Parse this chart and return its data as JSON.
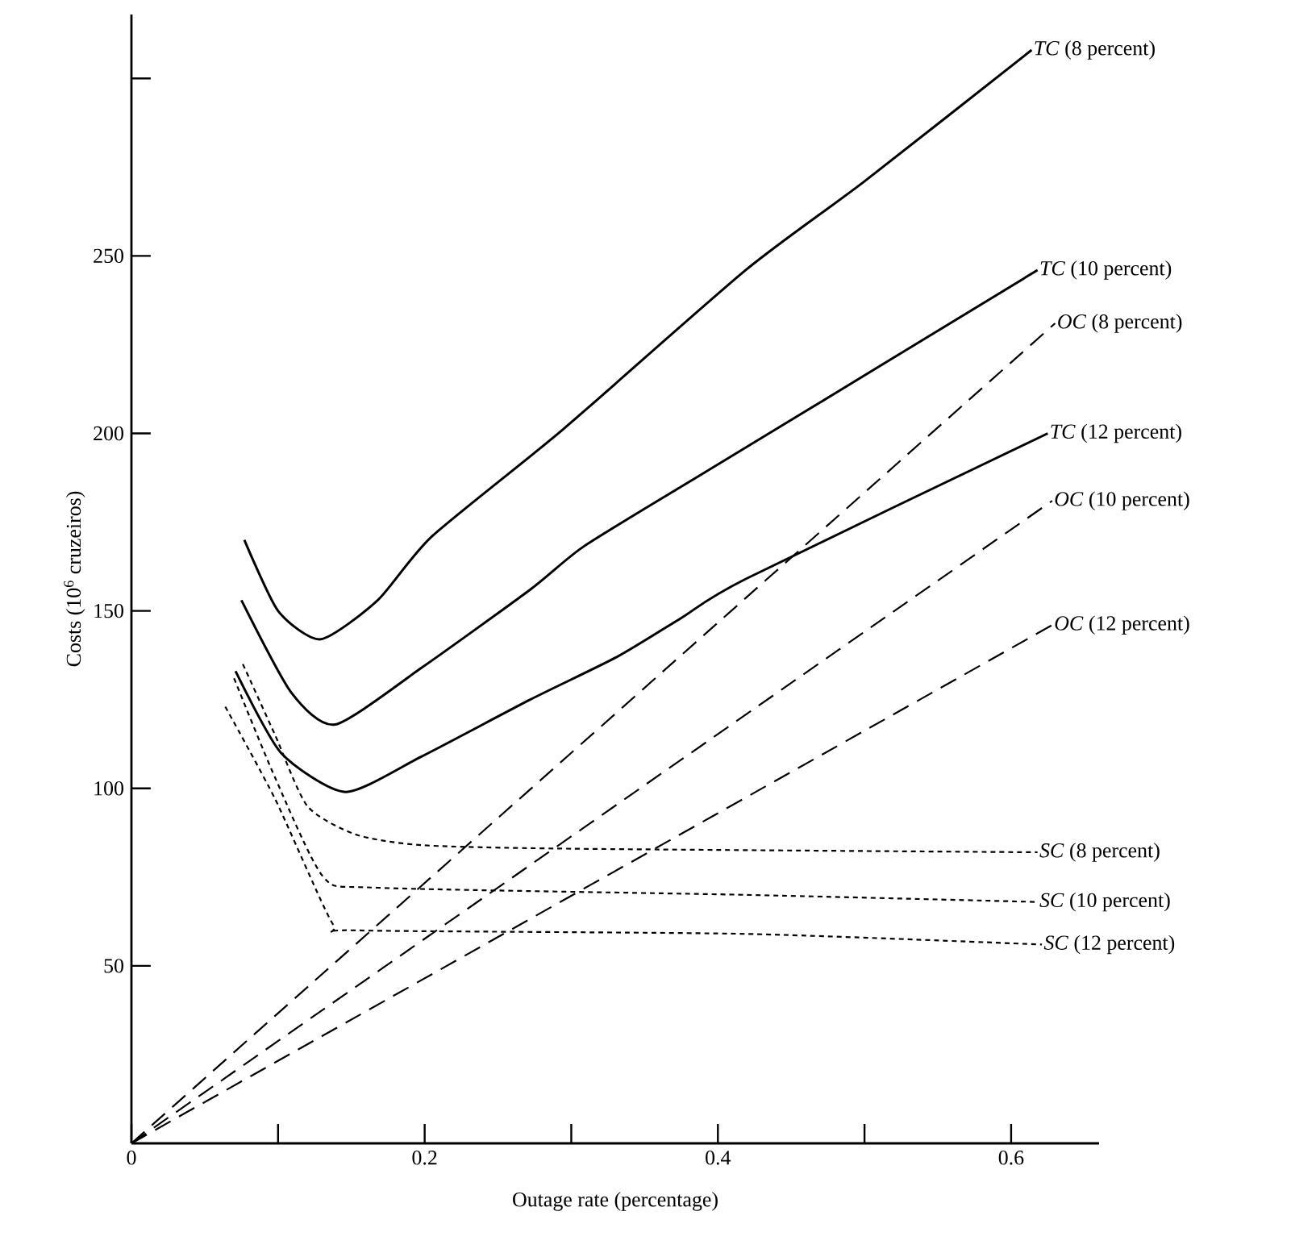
{
  "chart_data": {
    "type": "line",
    "xlabel": "Outage rate (percentage)",
    "ylabel": "Costs (10$^{6}$ cruzeiros)",
    "xlim": [
      0,
      0.66
    ],
    "ylim": [
      0,
      318
    ],
    "xticks": [
      0,
      {
        "value": 0.1,
        "label": null
      },
      0.2,
      {
        "value": 0.3,
        "label": null
      },
      0.4,
      {
        "value": 0.5,
        "label": null
      },
      0.6
    ],
    "yticks": [
      50,
      100,
      150,
      200,
      250,
      {
        "value": 300,
        "label": null
      }
    ],
    "grid": false,
    "legend": false,
    "marker": "none",
    "series": [
      {
        "name": "*TC* (8 percent)",
        "color": "#000000",
        "line_style": "solid",
        "x": [
          0.077,
          0.1,
          0.129,
          0.168,
          0.205,
          0.294,
          0.419,
          0.5,
          0.614
        ],
        "values": [
          170,
          150,
          142,
          153,
          171,
          201,
          246,
          271,
          308
        ]
      },
      {
        "name": "*TC* (10 percent)",
        "color": "#000000",
        "line_style": "solid",
        "x": [
          0.075,
          0.109,
          0.139,
          0.198,
          0.272,
          0.308,
          0.375,
          0.419,
          0.618
        ],
        "values": [
          153,
          127,
          118,
          134,
          156,
          168,
          185,
          196,
          246
        ]
      },
      {
        "name": "*OC* (8 percent)",
        "color": "#000000",
        "line_style": "dashed",
        "x": [
          0,
          0.63
        ],
        "values": [
          0,
          231
        ]
      },
      {
        "name": "*TC* (12 percent)",
        "color": "#000000",
        "line_style": "solid",
        "x": [
          0.071,
          0.102,
          0.146,
          0.198,
          0.272,
          0.331,
          0.375,
          0.419,
          0.625
        ],
        "values": [
          133,
          110,
          99,
          109,
          125,
          137,
          148,
          159,
          200
        ]
      },
      {
        "name": "*OC* (10 percent)",
        "color": "#000000",
        "line_style": "dashed",
        "x": [
          0,
          0.628
        ],
        "values": [
          0,
          181
        ]
      },
      {
        "name": "*OC* (12 percent)",
        "color": "#000000",
        "line_style": "dashed",
        "x": [
          0,
          0.628
        ],
        "values": [
          0,
          146
        ]
      },
      {
        "name": "*SC* (8 percent)",
        "color": "#000000",
        "line_style": "dotted",
        "x": [
          0.076,
          0.098,
          0.12,
          0.153,
          0.198,
          0.3,
          0.618
        ],
        "values": [
          135,
          115,
          95,
          87,
          84,
          83,
          82
        ]
      },
      {
        "name": "*SC* (10 percent)",
        "color": "#000000",
        "line_style": "dotted",
        "x": [
          0.07,
          0.098,
          0.131,
          0.168,
          0.419,
          0.618
        ],
        "values": [
          131,
          103,
          75,
          72,
          70,
          68
        ]
      },
      {
        "name": "*SC* (12 percent)",
        "color": "#000000",
        "line_style": "dotted",
        "x": [
          0.064,
          0.098,
          0.137,
          0.153,
          0.419,
          0.621
        ],
        "values": [
          123,
          97,
          62,
          60,
          59,
          56
        ]
      }
    ]
  }
}
